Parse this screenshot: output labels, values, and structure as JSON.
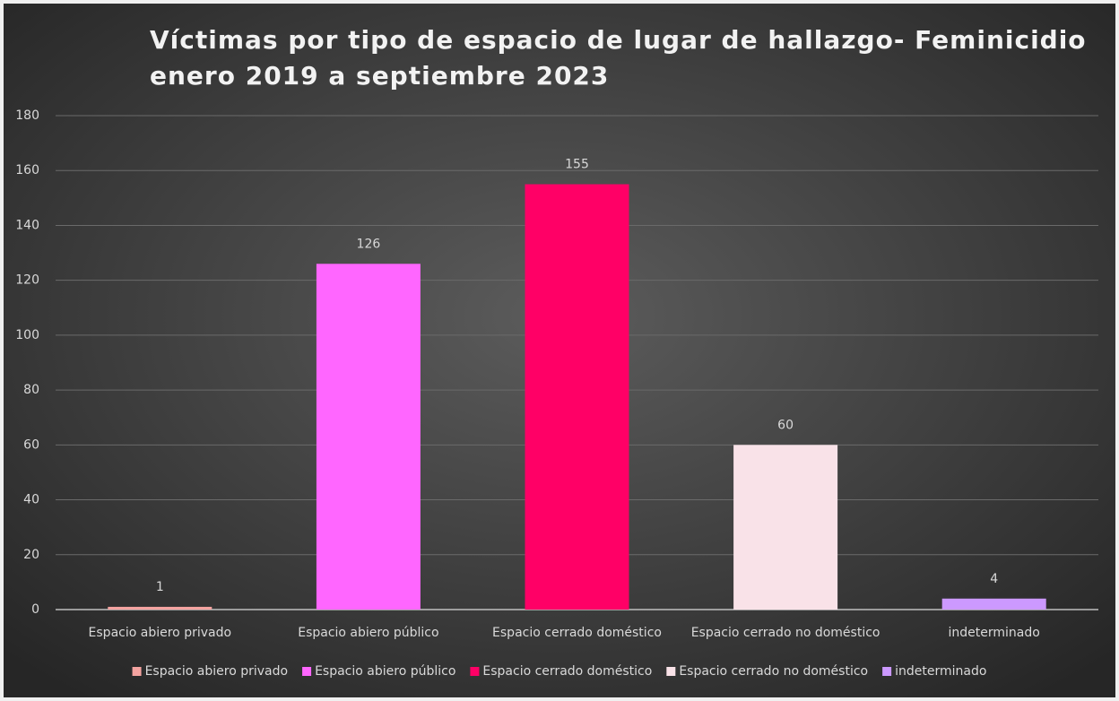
{
  "chart_data": {
    "type": "bar",
    "title": [
      "Víctimas por tipo de espacio de lugar de hallazgo- Feminicidio",
      "enero 2019 a septiembre 2023"
    ],
    "categories": [
      "Espacio abiero privado",
      "Espacio abiero público",
      "Espacio cerrado doméstico",
      "Espacio cerrado no doméstico",
      "indeterminado"
    ],
    "values": [
      1,
      126,
      155,
      60,
      4
    ],
    "colors": [
      "#f4a3a0",
      "#ff66ff",
      "#ff0066",
      "#f9e2e8",
      "#cc99ff"
    ],
    "ylim": [
      0,
      180
    ],
    "yticks": [
      0,
      20,
      40,
      60,
      80,
      100,
      120,
      140,
      160,
      180
    ],
    "grid": true,
    "legend": "bottom"
  }
}
